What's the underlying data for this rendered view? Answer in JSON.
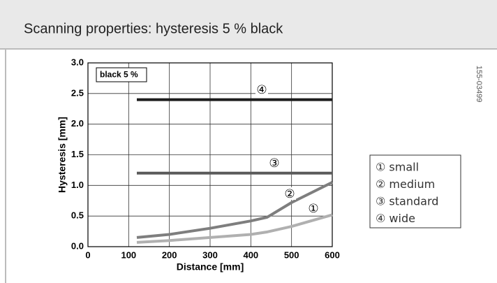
{
  "header": {
    "title": "Scanning properties: hysteresis 5 % black"
  },
  "side_code": "155-03499",
  "chart_data": {
    "type": "line",
    "x_label": "Distance [mm]",
    "y_label": "Hysteresis [mm]",
    "box_label": "black 5 %",
    "xlim": [
      0,
      600
    ],
    "xticks": [
      0,
      100,
      200,
      300,
      400,
      500,
      600
    ],
    "ylim": [
      0,
      3
    ],
    "yticks": [
      {
        "value": 0,
        "label": "0.0"
      },
      {
        "value": 0.5,
        "label": "0.5"
      },
      {
        "value": 1,
        "label": "1.0"
      },
      {
        "value": 1.5,
        "label": "1.5"
      },
      {
        "value": 2,
        "label": "2.0"
      },
      {
        "value": 2.5,
        "label": "2.5"
      },
      {
        "value": 3,
        "label": "3.0"
      }
    ],
    "grid": true,
    "series": [
      {
        "name": "① small",
        "color": "#b0b0b0",
        "x": [
          120,
          200,
          300,
          400,
          440,
          500,
          600
        ],
        "values": [
          0.07,
          0.1,
          0.15,
          0.2,
          0.24,
          0.33,
          0.52
        ]
      },
      {
        "name": "② medium",
        "color": "#7e7e7e",
        "x": [
          120,
          200,
          300,
          400,
          440,
          500,
          600
        ],
        "values": [
          0.15,
          0.2,
          0.3,
          0.42,
          0.48,
          0.72,
          1.05
        ]
      },
      {
        "name": "③ standard",
        "color": "#5a5a5a",
        "x": [
          120,
          600
        ],
        "values": [
          1.2,
          1.2
        ]
      },
      {
        "name": "④ wide",
        "color": "#1c1c1c",
        "x": [
          120,
          600
        ],
        "values": [
          2.4,
          2.4
        ]
      }
    ],
    "annotations": [
      {
        "text": "①"
      },
      {
        "text": "②"
      },
      {
        "text": "③"
      },
      {
        "text": "④"
      }
    ]
  }
}
